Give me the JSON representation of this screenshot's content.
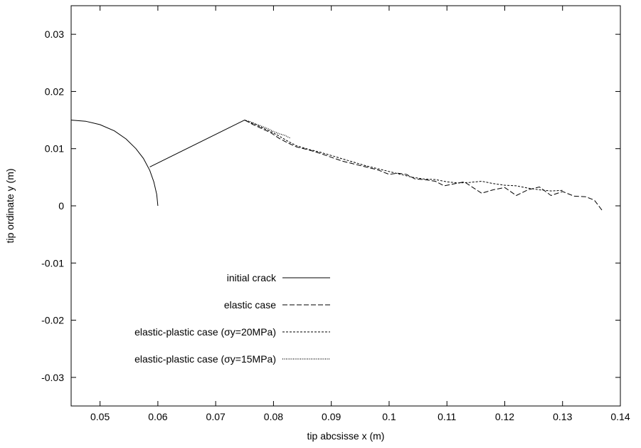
{
  "chart_data": {
    "type": "line",
    "title": "",
    "xlabel": "tip abcsisse x (m)",
    "ylabel": "tip ordinate y (m)",
    "xlim": [
      0.045,
      0.14
    ],
    "ylim": [
      -0.035,
      0.035
    ],
    "xticks": [
      "0.05",
      "0.06",
      "0.07",
      "0.08",
      "0.09",
      "0.1",
      "0.11",
      "0.12",
      "0.13",
      "0.14"
    ],
    "xtick_values": [
      0.05,
      0.06,
      0.07,
      0.08,
      0.09,
      0.1,
      0.11,
      0.12,
      0.13,
      0.14
    ],
    "yticks": [
      "-0.03",
      "-0.02",
      "-0.01",
      "0",
      "0.01",
      "0.02",
      "0.03"
    ],
    "ytick_values": [
      -0.03,
      -0.02,
      -0.01,
      0,
      0.01,
      0.02,
      0.03
    ],
    "grid": false,
    "legend_position": "center-left",
    "series": [
      {
        "name": "initial crack",
        "dash": "solid",
        "x": [
          0.045,
          0.0475,
          0.05,
          0.0525,
          0.0545,
          0.0562,
          0.0575,
          0.0586,
          0.0593,
          0.0598,
          0.06
        ],
        "y": [
          0.015,
          0.0148,
          0.0142,
          0.0131,
          0.0117,
          0.01,
          0.0083,
          0.0062,
          0.0042,
          0.002,
          0.0
        ],
        "x2": [
          0.0586,
          0.075
        ],
        "y2": [
          0.0068,
          0.015
        ]
      },
      {
        "name": "elastic case",
        "dash": "longdash",
        "x": [
          0.075,
          0.0765,
          0.078,
          0.0795,
          0.081,
          0.0825,
          0.084,
          0.086,
          0.088,
          0.09,
          0.092,
          0.094,
          0.096,
          0.098,
          0.1,
          0.1015,
          0.103,
          0.1045,
          0.106,
          0.108,
          0.1095,
          0.111,
          0.113,
          0.1145,
          0.116,
          0.118,
          0.12,
          0.122,
          0.124,
          0.126,
          0.128,
          0.13,
          0.132,
          0.134,
          0.1355,
          0.137
        ],
        "y": [
          0.015,
          0.0142,
          0.0135,
          0.0128,
          0.0118,
          0.011,
          0.0103,
          0.0098,
          0.0092,
          0.0085,
          0.0078,
          0.0073,
          0.0068,
          0.0063,
          0.0055,
          0.0057,
          0.0055,
          0.0047,
          0.0046,
          0.0043,
          0.0035,
          0.0038,
          0.0042,
          0.0032,
          0.0022,
          0.0028,
          0.0032,
          0.0018,
          0.0028,
          0.0033,
          0.0018,
          0.0025,
          0.0017,
          0.0016,
          0.001,
          -0.001
        ]
      },
      {
        "name": "elastic-plastic case (σy=20MPa)",
        "dash": "shortdash",
        "x": [
          0.075,
          0.0765,
          0.078,
          0.0795,
          0.081,
          0.0825,
          0.084,
          0.086,
          0.088,
          0.09,
          0.092,
          0.094,
          0.096,
          0.098,
          0.1,
          0.102,
          0.104,
          0.106,
          0.108,
          0.11,
          0.112,
          0.114,
          0.116,
          0.118,
          0.12,
          0.122,
          0.124,
          0.126,
          0.128,
          0.13
        ],
        "y": [
          0.015,
          0.0144,
          0.0137,
          0.013,
          0.0122,
          0.0113,
          0.0105,
          0.0099,
          0.0094,
          0.0088,
          0.0082,
          0.0076,
          0.007,
          0.0065,
          0.006,
          0.0055,
          0.005,
          0.0047,
          0.0046,
          0.0042,
          0.004,
          0.0041,
          0.0043,
          0.0039,
          0.0036,
          0.0035,
          0.0031,
          0.0028,
          0.0026,
          0.0027
        ]
      },
      {
        "name": "elastic-plastic case (σy=15MPa)",
        "dash": "dotted",
        "x": [
          0.075,
          0.076,
          0.077,
          0.078,
          0.079,
          0.08,
          0.081,
          0.082,
          0.083
        ],
        "y": [
          0.015,
          0.0147,
          0.0143,
          0.0139,
          0.0135,
          0.013,
          0.0126,
          0.0123,
          0.0118
        ]
      }
    ]
  }
}
